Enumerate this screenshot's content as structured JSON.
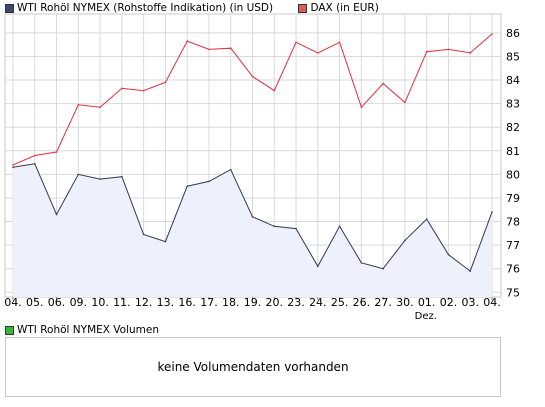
{
  "legend": {
    "series1_label": "WTI Rohöl NYMEX (Rohstoffe Indikation) (in USD)",
    "series2_label": "DAX (in EUR)"
  },
  "volume": {
    "legend_label": "WTI Rohöl NYMEX Volumen",
    "message": "keine Volumendaten vorhanden"
  },
  "colors": {
    "wti_line": "#2e3a52",
    "wti_fill": "#eef1fb",
    "wti_swatch": "#3b4a6b",
    "dax_line": "#e0303a",
    "dax_swatch": "#e05a5a",
    "volume_swatch": "#3cb43c",
    "grid": "#d9d9d9"
  },
  "chart_data": {
    "type": "line",
    "categories": [
      "04.",
      "05.",
      "06.",
      "09.",
      "10.",
      "11.",
      "12.",
      "13.",
      "16.",
      "17.",
      "18.",
      "19.",
      "20.",
      "23.",
      "24.",
      "25.",
      "26.",
      "27.",
      "30.",
      "01.",
      "02.",
      "03.",
      "04."
    ],
    "category_sublabels": {
      "19": "Dez."
    },
    "y_ticks": [
      75,
      76,
      77,
      78,
      79,
      80,
      81,
      82,
      83,
      84,
      85,
      86
    ],
    "ylim": [
      74.8,
      86.8
    ],
    "grid": true,
    "legend_position": "top-left",
    "series": [
      {
        "name": "WTI Rohöl NYMEX (Rohstoffe Indikation) (in USD)",
        "style": "area",
        "values": [
          80.3,
          80.45,
          78.3,
          80.0,
          79.8,
          79.9,
          77.45,
          77.15,
          79.5,
          79.7,
          80.2,
          78.2,
          77.8,
          77.7,
          76.1,
          77.8,
          76.25,
          76.0,
          77.2,
          78.1,
          76.6,
          75.9,
          78.4
        ]
      },
      {
        "name": "DAX (in EUR)",
        "style": "line",
        "values": [
          80.4,
          80.8,
          80.95,
          82.95,
          82.85,
          83.65,
          83.55,
          83.9,
          85.65,
          85.3,
          85.35,
          84.15,
          83.55,
          85.6,
          85.15,
          85.6,
          82.85,
          83.85,
          83.05,
          85.2,
          85.3,
          85.15,
          85.95
        ]
      }
    ]
  }
}
